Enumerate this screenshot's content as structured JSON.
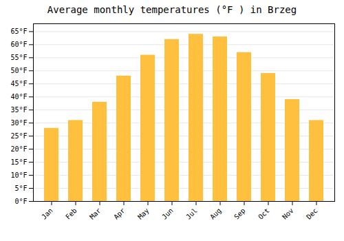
{
  "chart_data": {
    "type": "bar",
    "title": "Average monthly temperatures (°F ) in Brzeg",
    "categories": [
      "Jan",
      "Feb",
      "Mar",
      "Apr",
      "May",
      "Jun",
      "Jul",
      "Aug",
      "Sep",
      "Oct",
      "Nov",
      "Dec"
    ],
    "values": [
      28,
      31,
      38,
      48,
      56,
      62,
      64,
      63,
      57,
      49,
      39,
      31
    ],
    "color": "#FFC040",
    "ylim": [
      0,
      68
    ],
    "yticks": [
      {
        "value": 0,
        "label": "0°F"
      },
      {
        "value": 5,
        "label": "5°F"
      },
      {
        "value": 10,
        "label": "10°F"
      },
      {
        "value": 15,
        "label": "15°F"
      },
      {
        "value": 20,
        "label": "20°F"
      },
      {
        "value": 25,
        "label": "25°F"
      },
      {
        "value": 30,
        "label": "30°F"
      },
      {
        "value": 35,
        "label": "35°F"
      },
      {
        "value": 40,
        "label": "40°F"
      },
      {
        "value": 45,
        "label": "45°F"
      },
      {
        "value": 50,
        "label": "50°F"
      },
      {
        "value": 55,
        "label": "55°F"
      },
      {
        "value": 60,
        "label": "60°F"
      },
      {
        "value": 65,
        "label": "65°F"
      }
    ],
    "grid": true
  }
}
